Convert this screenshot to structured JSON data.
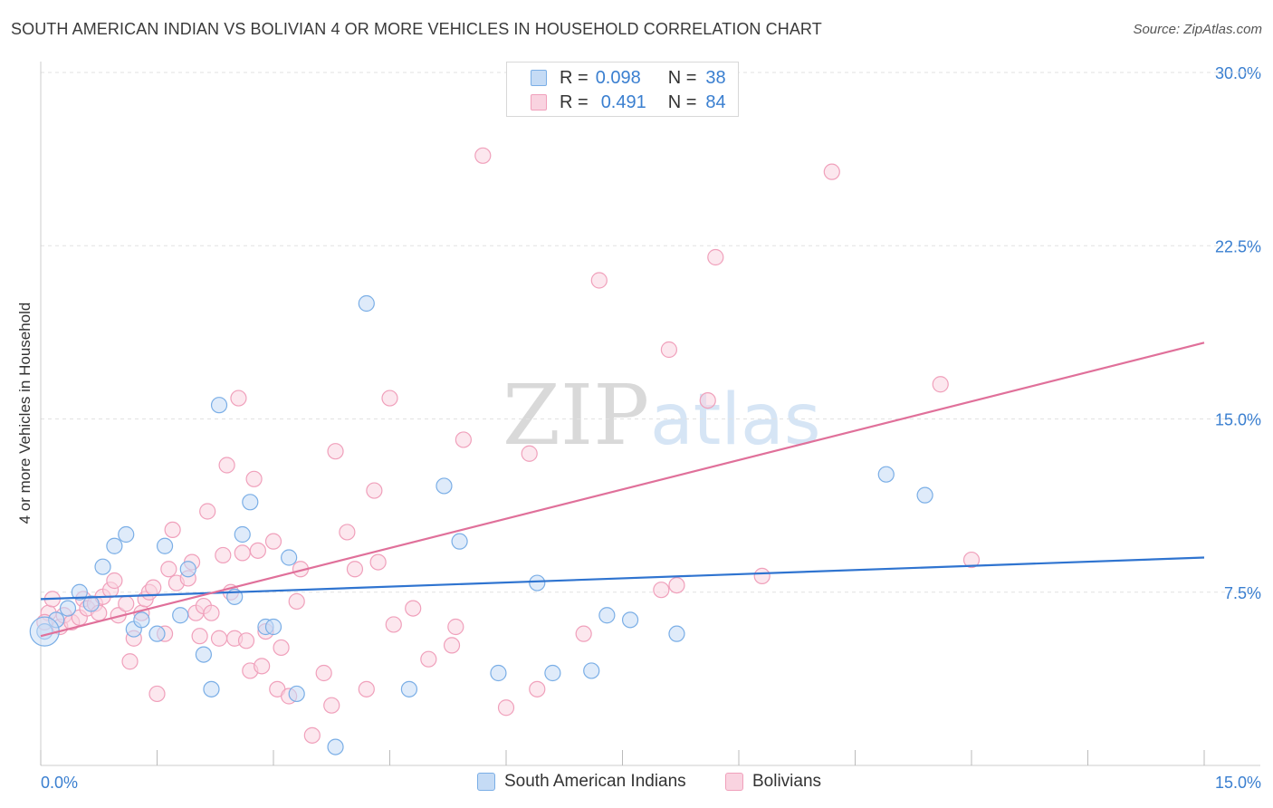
{
  "chart_data": {
    "type": "scatter",
    "title": "SOUTH AMERICAN INDIAN VS BOLIVIAN 4 OR MORE VEHICLES IN HOUSEHOLD CORRELATION CHART",
    "source": "Source: ZipAtlas.com",
    "xlabel": "",
    "ylabel": "4 or more Vehicles in Household",
    "xlim": [
      0,
      15
    ],
    "ylim": [
      0,
      30
    ],
    "x_tick_labels": {
      "left": "0.0%",
      "right": "15.0%"
    },
    "y_ticks": [
      {
        "value": 7.5,
        "label": "7.5%"
      },
      {
        "value": 15.0,
        "label": "15.0%"
      },
      {
        "value": 22.5,
        "label": "22.5%"
      },
      {
        "value": 30.0,
        "label": "30.0%"
      }
    ],
    "watermark": {
      "zip": "ZIP",
      "atlas": "atlas"
    },
    "legend": {
      "entries": [
        {
          "r_label": "R =",
          "r_value": "0.098",
          "n_label": "N =",
          "n_value": "38"
        },
        {
          "r_label": "R =",
          "r_value": "0.491",
          "n_label": "N =",
          "n_value": "84"
        }
      ]
    },
    "series": [
      {
        "name": "South American Indians",
        "color": "#7aaee6",
        "fill": "#c5dbf5",
        "line_color": "#2f74d0",
        "trend": {
          "x0": 0,
          "y0": 7.2,
          "x1": 15,
          "y1": 9.0
        },
        "points": [
          [
            0.05,
            5.8
          ],
          [
            0.2,
            6.3
          ],
          [
            0.35,
            6.8
          ],
          [
            0.5,
            7.5
          ],
          [
            0.65,
            7.0
          ],
          [
            0.8,
            8.6
          ],
          [
            0.95,
            9.5
          ],
          [
            1.1,
            10.0
          ],
          [
            1.2,
            5.9
          ],
          [
            1.3,
            6.3
          ],
          [
            1.5,
            5.7
          ],
          [
            1.6,
            9.5
          ],
          [
            1.8,
            6.5
          ],
          [
            1.9,
            8.5
          ],
          [
            2.1,
            4.8
          ],
          [
            2.2,
            3.3
          ],
          [
            2.3,
            15.6
          ],
          [
            2.5,
            7.3
          ],
          [
            2.6,
            10.0
          ],
          [
            2.7,
            11.4
          ],
          [
            2.9,
            6.0
          ],
          [
            3.0,
            6.0
          ],
          [
            3.2,
            9.0
          ],
          [
            3.3,
            3.1
          ],
          [
            3.8,
            0.8
          ],
          [
            4.2,
            20.0
          ],
          [
            4.75,
            3.3
          ],
          [
            5.2,
            12.1
          ],
          [
            5.4,
            9.7
          ],
          [
            5.9,
            4.0
          ],
          [
            6.4,
            7.9
          ],
          [
            6.6,
            4.0
          ],
          [
            7.1,
            4.1
          ],
          [
            7.3,
            6.5
          ],
          [
            7.6,
            6.3
          ],
          [
            8.2,
            5.7
          ],
          [
            10.9,
            12.6
          ],
          [
            11.4,
            11.7
          ]
        ]
      },
      {
        "name": "Bolivians",
        "color": "#f0a0bb",
        "fill": "#f9d3e0",
        "line_color": "#e0709a",
        "trend": {
          "x0": 0,
          "y0": 5.6,
          "x1": 15,
          "y1": 18.3
        },
        "points": [
          [
            0.1,
            6.6
          ],
          [
            0.15,
            7.2
          ],
          [
            0.25,
            6.0
          ],
          [
            0.3,
            6.5
          ],
          [
            0.4,
            6.2
          ],
          [
            0.5,
            6.4
          ],
          [
            0.55,
            7.2
          ],
          [
            0.6,
            6.8
          ],
          [
            0.7,
            7.0
          ],
          [
            0.75,
            6.6
          ],
          [
            0.8,
            7.3
          ],
          [
            0.9,
            7.6
          ],
          [
            0.95,
            8.0
          ],
          [
            1.0,
            6.5
          ],
          [
            1.1,
            7.0
          ],
          [
            1.15,
            4.5
          ],
          [
            1.2,
            5.5
          ],
          [
            1.3,
            6.6
          ],
          [
            1.35,
            7.2
          ],
          [
            1.4,
            7.5
          ],
          [
            1.45,
            7.7
          ],
          [
            1.5,
            3.1
          ],
          [
            1.6,
            5.7
          ],
          [
            1.65,
            8.5
          ],
          [
            1.7,
            10.2
          ],
          [
            1.75,
            7.9
          ],
          [
            1.9,
            8.1
          ],
          [
            1.95,
            8.8
          ],
          [
            2.0,
            6.6
          ],
          [
            2.05,
            5.6
          ],
          [
            2.1,
            6.9
          ],
          [
            2.15,
            11.0
          ],
          [
            2.2,
            6.6
          ],
          [
            2.3,
            5.5
          ],
          [
            2.35,
            9.1
          ],
          [
            2.4,
            13.0
          ],
          [
            2.45,
            7.5
          ],
          [
            2.5,
            5.5
          ],
          [
            2.55,
            15.9
          ],
          [
            2.6,
            9.2
          ],
          [
            2.65,
            5.4
          ],
          [
            2.7,
            4.1
          ],
          [
            2.75,
            12.4
          ],
          [
            2.8,
            9.3
          ],
          [
            2.85,
            4.3
          ],
          [
            2.9,
            5.8
          ],
          [
            3.0,
            9.7
          ],
          [
            3.05,
            3.3
          ],
          [
            3.1,
            5.1
          ],
          [
            3.2,
            3.0
          ],
          [
            3.3,
            7.1
          ],
          [
            3.35,
            8.5
          ],
          [
            3.5,
            1.3
          ],
          [
            3.65,
            4.0
          ],
          [
            3.75,
            2.6
          ],
          [
            3.8,
            13.6
          ],
          [
            3.95,
            10.1
          ],
          [
            4.05,
            8.5
          ],
          [
            4.2,
            3.3
          ],
          [
            4.3,
            11.9
          ],
          [
            4.35,
            8.8
          ],
          [
            4.5,
            15.9
          ],
          [
            4.55,
            6.1
          ],
          [
            4.8,
            6.8
          ],
          [
            5.0,
            4.6
          ],
          [
            5.3,
            5.2
          ],
          [
            5.35,
            6.0
          ],
          [
            5.45,
            14.1
          ],
          [
            5.7,
            26.4
          ],
          [
            6.0,
            2.5
          ],
          [
            6.3,
            13.5
          ],
          [
            6.4,
            3.3
          ],
          [
            7.0,
            5.7
          ],
          [
            7.2,
            21.0
          ],
          [
            8.0,
            7.6
          ],
          [
            8.1,
            18.0
          ],
          [
            8.2,
            7.8
          ],
          [
            8.6,
            15.8
          ],
          [
            8.7,
            22.0
          ],
          [
            9.3,
            8.2
          ],
          [
            10.2,
            25.7
          ],
          [
            11.6,
            16.5
          ],
          [
            12.0,
            8.9
          ],
          [
            0.05,
            6.2
          ]
        ]
      }
    ]
  }
}
